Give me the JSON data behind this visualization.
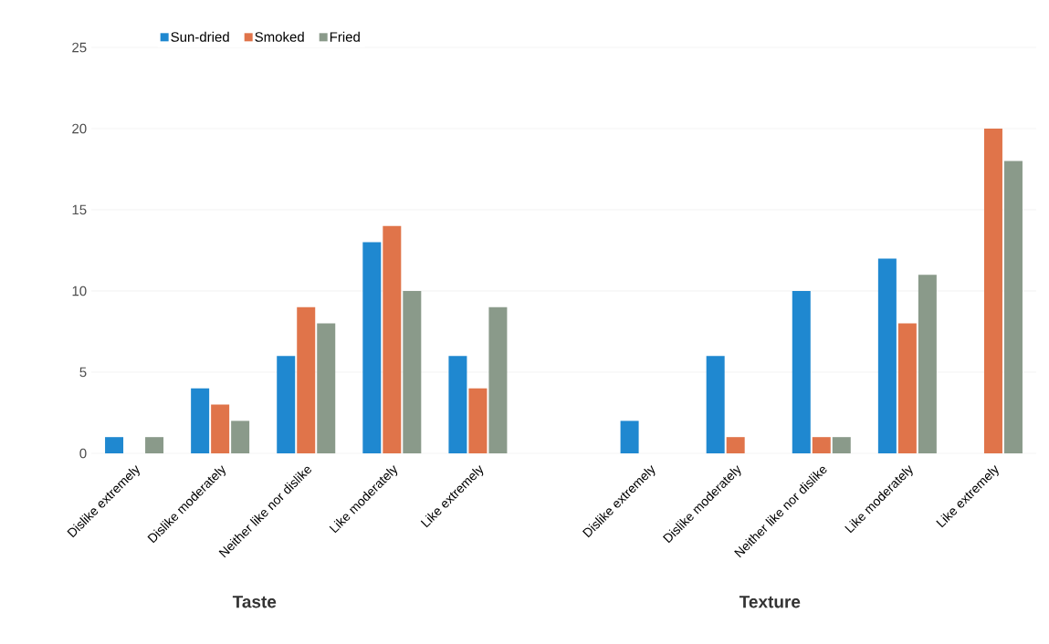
{
  "chart_data": {
    "type": "bar",
    "categories": [
      "Dislike extremely",
      "Dislike moderately",
      "Neither like nor dislike",
      "Like moderately",
      "Like extremely",
      null,
      "Dislike extremely",
      "Dislike moderately",
      "Neither like nor dislike",
      "Like moderately",
      "Like extremely"
    ],
    "series": [
      {
        "name": "Sun-dried",
        "color": "#1f88d0",
        "values": [
          1,
          4,
          6,
          13,
          6,
          null,
          2,
          6,
          10,
          12,
          0
        ]
      },
      {
        "name": "Smoked",
        "color": "#e0744a",
        "values": [
          0,
          3,
          9,
          14,
          4,
          null,
          0,
          1,
          1,
          8,
          20
        ]
      },
      {
        "name": "Fried",
        "color": "#8a9a8a",
        "values": [
          1,
          2,
          8,
          10,
          9,
          null,
          0,
          0,
          1,
          11,
          18
        ]
      }
    ],
    "ylim": [
      0,
      25
    ],
    "yticks": [
      0,
      5,
      10,
      15,
      20,
      25
    ],
    "grid": "y",
    "legend": "top",
    "annotations": [
      "Taste",
      "Texture"
    ]
  }
}
